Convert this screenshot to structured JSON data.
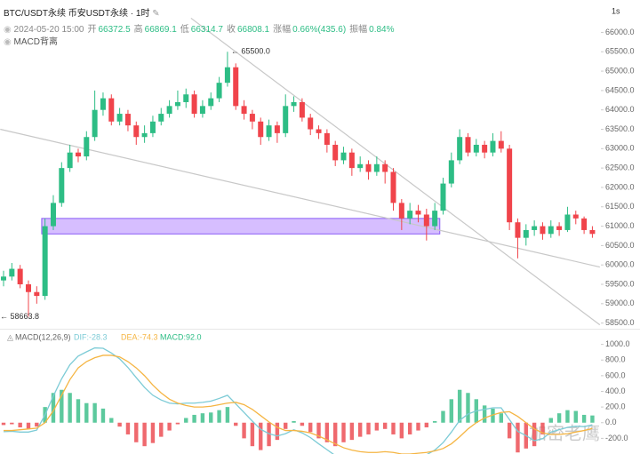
{
  "header": {
    "title": "BTC/USDT永续 币安USDT永续 · 1时",
    "interval": "1s",
    "time": "2024-05-20 15:00",
    "ohlc": [
      {
        "label": "开",
        "value": "66372.5"
      },
      {
        "label": "高",
        "value": "66869.1"
      },
      {
        "label": "低",
        "value": "66314.7"
      },
      {
        "label": "收",
        "value": "66808.1"
      },
      {
        "label": "涨幅",
        "value": "0.66%(435.6)"
      },
      {
        "label": "振幅",
        "value": "0.84%"
      }
    ],
    "indicator": "MACD背离",
    "watermark": "加密老鹰"
  },
  "chart_data": [
    {
      "type": "candlestick",
      "up_color": "#2dbd85",
      "down_color": "#f0444b",
      "open": [
        59600,
        59700,
        59900,
        59500,
        59300,
        59200,
        61000,
        61600,
        62500,
        62900,
        62800,
        63300,
        64000,
        64300,
        63700,
        63900,
        63600,
        63300,
        63400,
        63700,
        63900,
        64100,
        64200,
        64400,
        63900,
        64100,
        64300,
        64700,
        65100,
        64100,
        63900,
        63700,
        63300,
        63600,
        63400,
        64100,
        64200,
        63800,
        63500,
        63400,
        63100,
        62700,
        62900,
        62500,
        62600,
        62400,
        62600,
        62400,
        61600,
        61200,
        61400,
        61300,
        61000,
        61400,
        62100,
        62700,
        63300,
        62900,
        63100,
        62900,
        63200,
        63000,
        61100,
        60700,
        60900,
        61000,
        60800,
        61000,
        60900,
        61300,
        61200,
        60900
      ],
      "high": [
        59850,
        60050,
        60000,
        59600,
        59450,
        61200,
        61800,
        62650,
        63100,
        63000,
        63450,
        64500,
        64450,
        64400,
        64050,
        64000,
        63700,
        63600,
        63850,
        64050,
        64250,
        64500,
        64550,
        64500,
        64250,
        64450,
        64850,
        65500,
        65200,
        64250,
        64000,
        63800,
        63750,
        63700,
        64400,
        64350,
        64300,
        63900,
        63600,
        63500,
        63200,
        63050,
        63000,
        62800,
        62700,
        62800,
        62700,
        62500,
        61700,
        61600,
        61550,
        61450,
        61600,
        62250,
        62900,
        63500,
        63400,
        63250,
        63200,
        63400,
        63450,
        63100,
        61200,
        61050,
        61150,
        61100,
        61150,
        61100,
        61500,
        61400,
        61250,
        61000
      ],
      "low": [
        59450,
        59600,
        59400,
        58663.8,
        59000,
        59100,
        60900,
        61500,
        62400,
        62650,
        62700,
        63200,
        63850,
        63600,
        63600,
        63450,
        63100,
        63150,
        63300,
        63600,
        63800,
        64000,
        64050,
        63800,
        63800,
        64000,
        64200,
        64600,
        64000,
        63750,
        63500,
        63100,
        63200,
        63150,
        63300,
        63950,
        63700,
        63350,
        63250,
        62900,
        62550,
        62600,
        62300,
        62400,
        62200,
        62300,
        62100,
        61400,
        60900,
        61050,
        61100,
        60630,
        60900,
        61300,
        62000,
        62600,
        62800,
        62800,
        62750,
        62800,
        62900,
        60900,
        60170,
        60500,
        60750,
        60650,
        60700,
        60750,
        60850,
        61050,
        60800,
        60700
      ],
      "close": [
        59700,
        59900,
        59500,
        59300,
        59200,
        61000,
        61600,
        62500,
        62900,
        62800,
        63300,
        64000,
        64300,
        63700,
        63900,
        63600,
        63300,
        63400,
        63700,
        63900,
        64100,
        64200,
        64400,
        63900,
        64100,
        64300,
        64700,
        65100,
        64100,
        63900,
        63700,
        63300,
        63600,
        63400,
        64100,
        64200,
        63800,
        63500,
        63400,
        63100,
        62700,
        62900,
        62500,
        62600,
        62400,
        62600,
        62400,
        61600,
        61200,
        61400,
        61300,
        61000,
        61400,
        62100,
        62700,
        63300,
        62900,
        63100,
        62900,
        63200,
        63000,
        61100,
        60700,
        60900,
        61000,
        60800,
        61000,
        60900,
        61300,
        61200,
        60900,
        60800
      ],
      "ylim": [
        58400,
        66400
      ],
      "yticks": [
        {
          "value": 58500,
          "label": "58500.0"
        },
        {
          "value": 59000,
          "label": "59000.0"
        },
        {
          "value": 59500,
          "label": "59500.0"
        },
        {
          "value": 60000,
          "label": "60000.0"
        },
        {
          "value": 60500,
          "label": "60500.0"
        },
        {
          "value": 61000,
          "label": "61000.0"
        },
        {
          "value": 61500,
          "label": "61500.0"
        },
        {
          "value": 62000,
          "label": "62000.0"
        },
        {
          "value": 62500,
          "label": "62500.0"
        },
        {
          "value": 63000,
          "label": "63000.0"
        },
        {
          "value": 63500,
          "label": "63500.0"
        },
        {
          "value": 64000,
          "label": "64000.0"
        },
        {
          "value": 64500,
          "label": "64500.0"
        },
        {
          "value": 65000,
          "label": "65000.0"
        },
        {
          "value": 65500,
          "label": "65500.0"
        },
        {
          "value": 66000,
          "label": "66000.0"
        }
      ],
      "zone": {
        "x": [
          4.6,
          52.6
        ],
        "y": [
          60800,
          61200
        ],
        "color": "#c8a8ff"
      },
      "trendlines": [
        {
          "x": [
            22.6,
            71.9
          ],
          "y": [
            66367,
            58454
          ]
        },
        {
          "x": [
            -0.4,
            71.9
          ],
          "y": [
            63500,
            59945
          ]
        }
      ],
      "annotations": [
        {
          "label": "← 65500.0",
          "value": 65500,
          "index": 27
        },
        {
          "label": "← 58663.8",
          "value": 58663.8,
          "index": 3
        }
      ]
    },
    {
      "type": "macd",
      "title": "MACD(12,26,9)",
      "ylim": [
        -400,
        1200
      ],
      "yticks": [
        {
          "value": -200,
          "label": "-200.0"
        },
        {
          "value": 0,
          "label": "0.0"
        },
        {
          "value": 200,
          "label": "200.0"
        },
        {
          "value": 400,
          "label": "400.0"
        },
        {
          "value": 600,
          "label": "600.0"
        },
        {
          "value": 800,
          "label": "800.0"
        },
        {
          "value": 1000,
          "label": "1000.0"
        }
      ],
      "up_color": "#3fbf8c",
      "down_color": "#ec4f55",
      "series": [
        {
          "name": "DIF:-28.3",
          "color": "#7ccbd6",
          "values": [
            -115,
            -110,
            -120,
            -120,
            -95,
            100,
            340,
            560,
            740,
            850,
            905,
            955,
            950,
            890,
            815,
            705,
            575,
            450,
            350,
            290,
            250,
            240,
            250,
            250,
            260,
            275,
            310,
            350,
            240,
            130,
            20,
            -85,
            -140,
            -170,
            -140,
            -90,
            -130,
            -190,
            -270,
            -345,
            -420,
            -445,
            -460,
            -460,
            -455,
            -430,
            -410,
            -455,
            -500,
            -475,
            -440,
            -410,
            -350,
            -255,
            -120,
            30,
            110,
            150,
            170,
            190,
            190,
            40,
            -110,
            -165,
            -230,
            -205,
            -120,
            -90,
            -60,
            -45,
            -50,
            -28.3
          ]
        },
        {
          "name": "DEA:-74.3",
          "color": "#f5b543",
          "values": [
            -100,
            -100,
            -90,
            -80,
            -70,
            0,
            150,
            350,
            550,
            700,
            780,
            830,
            860,
            860,
            840,
            780,
            700,
            600,
            480,
            380,
            300,
            250,
            220,
            200,
            200,
            210,
            230,
            250,
            260,
            230,
            170,
            90,
            10,
            -60,
            -100,
            -100,
            -110,
            -130,
            -170,
            -220,
            -270,
            -320,
            -350,
            -370,
            -380,
            -380,
            -370,
            -380,
            -400,
            -400,
            -390,
            -380,
            -360,
            -330,
            -270,
            -180,
            -80,
            0,
            60,
            100,
            130,
            140,
            80,
            0,
            -80,
            -130,
            -150,
            -150,
            -140,
            -120,
            -100,
            -74.3
          ]
        },
        {
          "name": "MACD:92.0",
          "color": "#2dbd85",
          "values": [
            -30,
            -20,
            -60,
            -80,
            -50,
            200,
            380,
            420,
            380,
            300,
            250,
            250,
            180,
            60,
            -50,
            -150,
            -250,
            -300,
            -260,
            -180,
            -100,
            -20,
            60,
            100,
            120,
            130,
            160,
            200,
            -40,
            -200,
            -300,
            -350,
            -300,
            -220,
            -80,
            20,
            -40,
            -120,
            -200,
            -250,
            -300,
            -250,
            -220,
            -180,
            -150,
            -100,
            -80,
            -150,
            -200,
            -150,
            -100,
            -60,
            20,
            150,
            300,
            420,
            380,
            300,
            220,
            180,
            120,
            -200,
            -380,
            -330,
            -300,
            -150,
            60,
            120,
            160,
            150,
            100,
            92
          ]
        }
      ]
    }
  ]
}
